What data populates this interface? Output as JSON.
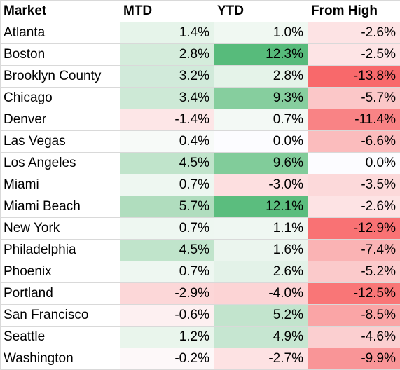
{
  "headers": [
    "Market",
    "MTD",
    "YTD",
    "From High"
  ],
  "rows": [
    {
      "market": "Atlanta",
      "mtd": "1.4%",
      "ytd": "1.0%",
      "high": "-2.6%",
      "mtd_color": "#e6f4ea",
      "ytd_color": "#f0f8f2",
      "high_color": "#fde3e4"
    },
    {
      "market": "Boston",
      "mtd": "2.8%",
      "ytd": "12.3%",
      "high": "-2.5%",
      "mtd_color": "#d4ecdb",
      "ytd_color": "#57bb7b",
      "high_color": "#fde4e5"
    },
    {
      "market": "Brooklyn County",
      "mtd": "3.2%",
      "ytd": "2.8%",
      "high": "-13.8%",
      "mtd_color": "#d1eada",
      "ytd_color": "#e5f3e9",
      "high_color": "#f8696b"
    },
    {
      "market": "Chicago",
      "mtd": "3.4%",
      "ytd": "9.3%",
      "high": "-5.7%",
      "mtd_color": "#cde9d6",
      "ytd_color": "#86ce9e",
      "high_color": "#fbc7c8"
    },
    {
      "market": "Denver",
      "mtd": "-1.4%",
      "ytd": "0.7%",
      "high": "-11.4%",
      "mtd_color": "#fde6e7",
      "ytd_color": "#f3f9f5",
      "high_color": "#f98385"
    },
    {
      "market": "Las Vegas",
      "mtd": "0.4%",
      "ytd": "0.0%",
      "high": "-6.6%",
      "mtd_color": "#f7faf8",
      "ytd_color": "#fcfcff",
      "high_color": "#fbbcbd"
    },
    {
      "market": "Los Angeles",
      "mtd": "4.5%",
      "ytd": "9.6%",
      "high": "0.0%",
      "mtd_color": "#c0e4cb",
      "ytd_color": "#81cc9a",
      "high_color": "#fcfcff"
    },
    {
      "market": "Miami",
      "mtd": "0.7%",
      "ytd": "-3.0%",
      "high": "-3.5%",
      "mtd_color": "#eef7f1",
      "ytd_color": "#fddfe0",
      "high_color": "#fcd9da"
    },
    {
      "market": "Miami Beach",
      "mtd": "5.7%",
      "ytd": "12.1%",
      "high": "-2.6%",
      "mtd_color": "#b0ddbe",
      "ytd_color": "#5bbd7e",
      "high_color": "#fde3e4"
    },
    {
      "market": "New York",
      "mtd": "0.7%",
      "ytd": "1.1%",
      "high": "-12.9%",
      "mtd_color": "#eef7f1",
      "ytd_color": "#eff7f2",
      "high_color": "#f97274"
    },
    {
      "market": "Philadelphia",
      "mtd": "4.5%",
      "ytd": "1.6%",
      "high": "-7.4%",
      "mtd_color": "#c0e4cb",
      "ytd_color": "#ebf5ee",
      "high_color": "#fab3b4"
    },
    {
      "market": "Phoenix",
      "mtd": "0.7%",
      "ytd": "2.6%",
      "high": "-5.2%",
      "mtd_color": "#eef7f1",
      "ytd_color": "#e3f2e8",
      "high_color": "#fbcacb"
    },
    {
      "market": "Portland",
      "mtd": "-2.9%",
      "ytd": "-4.0%",
      "high": "-12.5%",
      "mtd_color": "#fcd7d8",
      "ytd_color": "#fcd4d5",
      "high_color": "#f97677"
    },
    {
      "market": "San Francisco",
      "mtd": "-0.6%",
      "ytd": "5.2%",
      "high": "-8.5%",
      "mtd_color": "#fdf0f1",
      "ytd_color": "#c2e4cd",
      "high_color": "#faa5a6"
    },
    {
      "market": "Seattle",
      "mtd": "1.2%",
      "ytd": "4.9%",
      "high": "-4.6%",
      "mtd_color": "#e9f5ec",
      "ytd_color": "#c6e6d1",
      "high_color": "#fbcfd0"
    },
    {
      "market": "Washington",
      "mtd": "-0.2%",
      "ytd": "-2.7%",
      "high": "-9.9%",
      "mtd_color": "#fdf8f9",
      "ytd_color": "#fde2e3",
      "high_color": "#f99597"
    }
  ]
}
